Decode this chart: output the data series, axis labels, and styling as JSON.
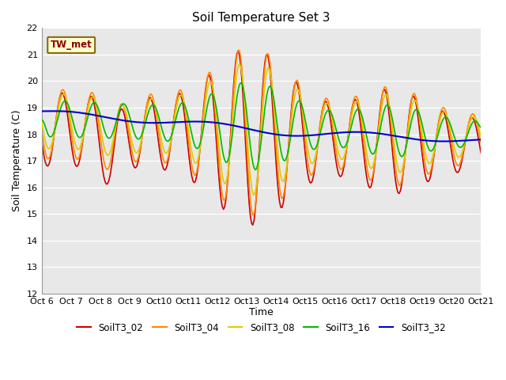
{
  "title": "Soil Temperature Set 3",
  "xlabel": "Time",
  "ylabel": "Soil Temperature (C)",
  "ylim": [
    12.0,
    22.0
  ],
  "yticks": [
    12.0,
    13.0,
    14.0,
    15.0,
    16.0,
    17.0,
    18.0,
    19.0,
    20.0,
    21.0,
    22.0
  ],
  "xtick_labels": [
    "Oct 6",
    "Oct 7",
    "Oct 8",
    "Oct 9",
    "Oct 10",
    "Oct 11",
    "Oct 12",
    "Oct 13",
    "Oct 14",
    "Oct 15",
    "Oct 16",
    "Oct 17",
    "Oct 18",
    "Oct 19",
    "Oct 20",
    "Oct 21"
  ],
  "annotation_text": "TW_met",
  "colors": {
    "SoilT3_02": "#cc0000",
    "SoilT3_04": "#ff8800",
    "SoilT3_08": "#ddcc00",
    "SoilT3_16": "#00bb00",
    "SoilT3_32": "#0000cc"
  },
  "plot_bg": "#e8e8e8",
  "fig_bg": "#ffffff",
  "legend_labels": [
    "SoilT3_02",
    "SoilT3_04",
    "SoilT3_08",
    "SoilT3_16",
    "SoilT3_32"
  ]
}
